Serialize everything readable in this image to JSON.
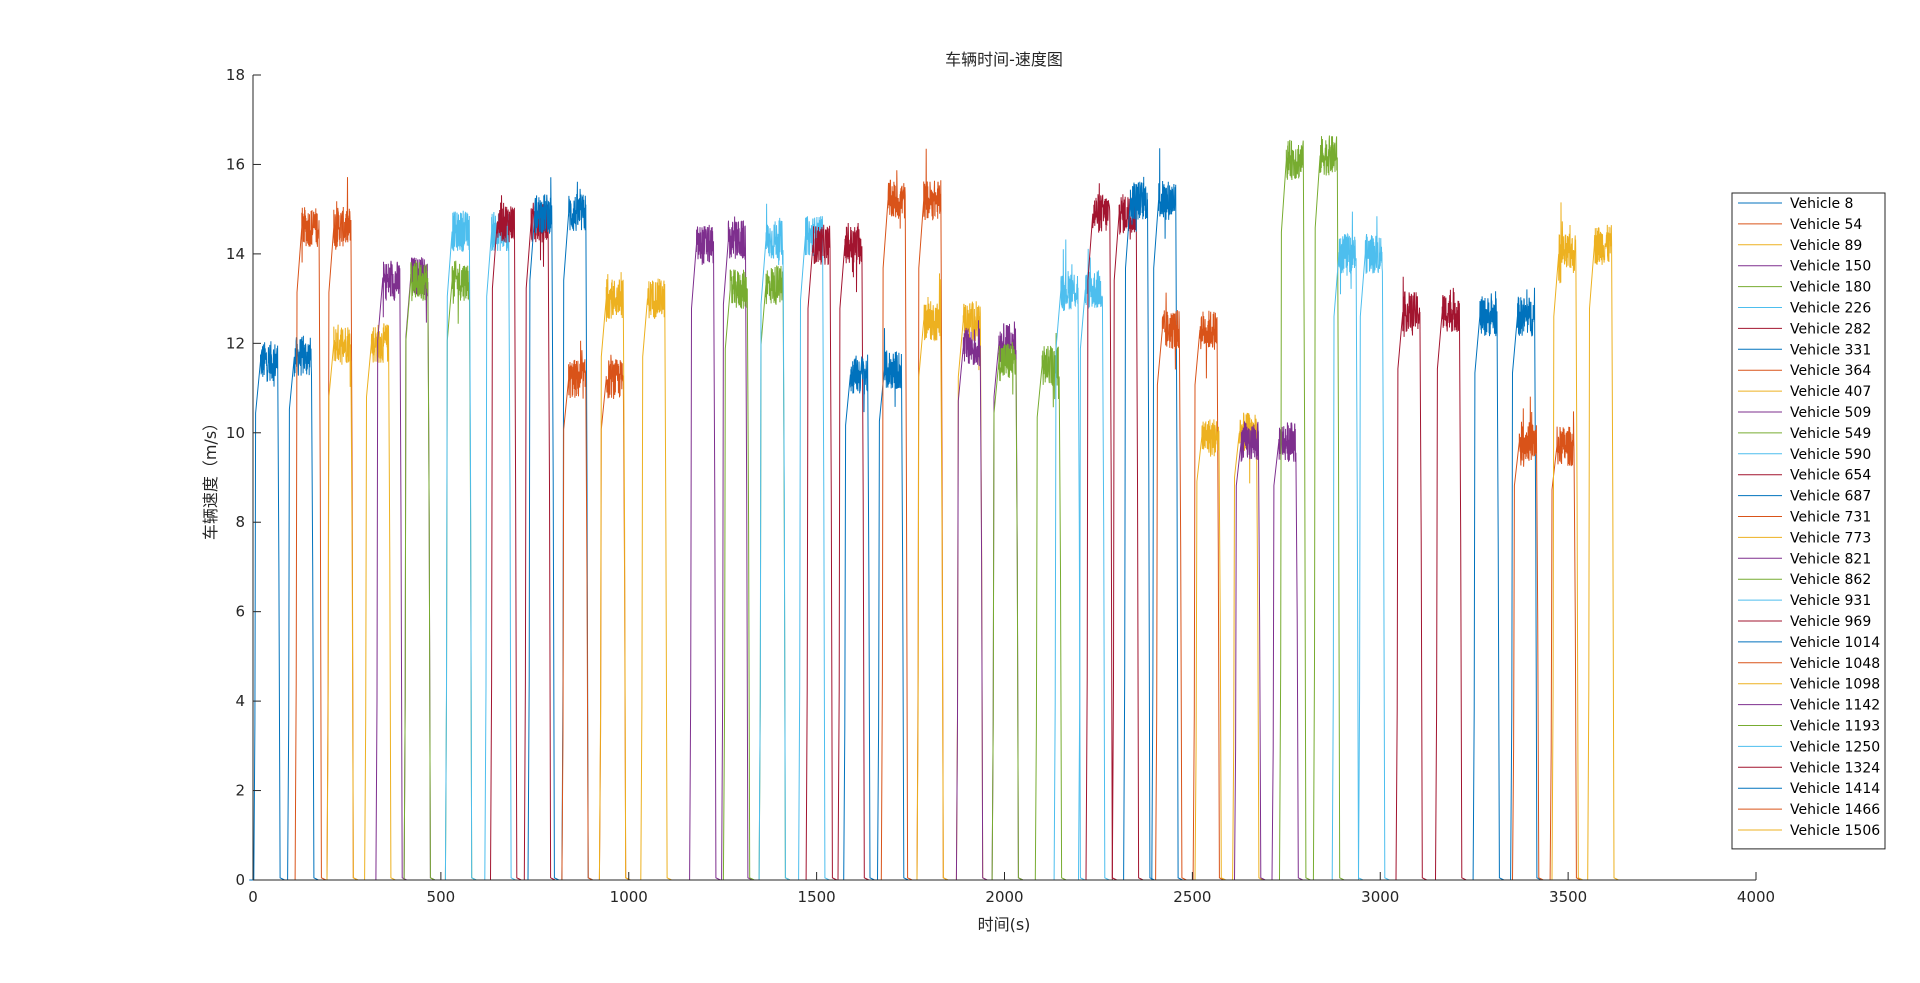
{
  "chart_data": {
    "type": "line",
    "title": "车辆时间-速度图",
    "xlabel": "时间(s)",
    "ylabel": "车辆速度（m/s）",
    "xlim": [
      0,
      4000
    ],
    "ylim": [
      0,
      18
    ],
    "xticks": [
      0,
      500,
      1000,
      1500,
      2000,
      2500,
      3000,
      3500,
      4000
    ],
    "yticks": [
      0,
      2,
      4,
      6,
      8,
      10,
      12,
      14,
      16,
      18
    ],
    "grid": false,
    "legend_position": "right",
    "colors": [
      "#0072BD",
      "#D95319",
      "#EDB120",
      "#7E2F8E",
      "#77AC30",
      "#4DBEEE",
      "#A2142F"
    ],
    "series": [
      {
        "name": "Vehicle 8",
        "segments": [
          {
            "start": 20,
            "end": 66,
            "speed": 11.6
          },
          {
            "start": 110,
            "end": 156,
            "speed": 11.7
          }
        ]
      },
      {
        "name": "Vehicle 54",
        "segments": [
          {
            "start": 130,
            "end": 176,
            "speed": 14.6
          },
          {
            "start": 215,
            "end": 261,
            "speed": 14.6
          }
        ]
      },
      {
        "name": "Vehicle 89",
        "segments": [
          {
            "start": 215,
            "end": 261,
            "speed": 12.0
          },
          {
            "start": 315,
            "end": 361,
            "speed": 12.0
          }
        ]
      },
      {
        "name": "Vehicle 150",
        "segments": [
          {
            "start": 345,
            "end": 391,
            "speed": 13.4
          },
          {
            "start": 420,
            "end": 466,
            "speed": 13.5
          }
        ]
      },
      {
        "name": "Vehicle 180",
        "segments": [
          {
            "start": 420,
            "end": 466,
            "speed": 13.4
          },
          {
            "start": 530,
            "end": 576,
            "speed": 13.4
          }
        ]
      },
      {
        "name": "Vehicle 226",
        "segments": [
          {
            "start": 530,
            "end": 576,
            "speed": 14.5
          },
          {
            "start": 635,
            "end": 681,
            "speed": 14.5
          }
        ]
      },
      {
        "name": "Vehicle 282",
        "segments": [
          {
            "start": 650,
            "end": 696,
            "speed": 14.7
          },
          {
            "start": 740,
            "end": 786,
            "speed": 14.7
          }
        ]
      },
      {
        "name": "Vehicle 331",
        "segments": [
          {
            "start": 750,
            "end": 796,
            "speed": 14.9
          },
          {
            "start": 840,
            "end": 886,
            "speed": 14.9
          }
        ]
      },
      {
        "name": "Vehicle 364",
        "segments": [
          {
            "start": 840,
            "end": 886,
            "speed": 11.2
          },
          {
            "start": 940,
            "end": 986,
            "speed": 11.2
          }
        ]
      },
      {
        "name": "Vehicle 407",
        "segments": [
          {
            "start": 940,
            "end": 986,
            "speed": 13.0
          },
          {
            "start": 1050,
            "end": 1096,
            "speed": 13.0
          }
        ]
      },
      {
        "name": "Vehicle 509",
        "segments": [
          {
            "start": 1180,
            "end": 1226,
            "speed": 14.2
          },
          {
            "start": 1265,
            "end": 1311,
            "speed": 14.3
          }
        ]
      },
      {
        "name": "Vehicle 549",
        "segments": [
          {
            "start": 1270,
            "end": 1316,
            "speed": 13.2
          },
          {
            "start": 1365,
            "end": 1411,
            "speed": 13.3
          }
        ]
      },
      {
        "name": "Vehicle 590",
        "segments": [
          {
            "start": 1365,
            "end": 1411,
            "speed": 14.3
          },
          {
            "start": 1470,
            "end": 1516,
            "speed": 14.4
          }
        ]
      },
      {
        "name": "Vehicle 654",
        "segments": [
          {
            "start": 1490,
            "end": 1536,
            "speed": 14.2
          },
          {
            "start": 1575,
            "end": 1621,
            "speed": 14.2
          }
        ]
      },
      {
        "name": "Vehicle 687",
        "segments": [
          {
            "start": 1590,
            "end": 1636,
            "speed": 11.3
          },
          {
            "start": 1680,
            "end": 1726,
            "speed": 11.4
          }
        ]
      },
      {
        "name": "Vehicle 731",
        "segments": [
          {
            "start": 1690,
            "end": 1736,
            "speed": 15.2
          },
          {
            "start": 1785,
            "end": 1831,
            "speed": 15.2
          }
        ]
      },
      {
        "name": "Vehicle 773",
        "segments": [
          {
            "start": 1785,
            "end": 1831,
            "speed": 12.5
          },
          {
            "start": 1890,
            "end": 1936,
            "speed": 12.5
          }
        ]
      },
      {
        "name": "Vehicle 821",
        "segments": [
          {
            "start": 1890,
            "end": 1936,
            "speed": 11.9
          },
          {
            "start": 1985,
            "end": 2031,
            "speed": 12.0
          }
        ]
      },
      {
        "name": "Vehicle 862",
        "segments": [
          {
            "start": 1985,
            "end": 2031,
            "speed": 11.6
          },
          {
            "start": 2100,
            "end": 2146,
            "speed": 11.5
          }
        ]
      },
      {
        "name": "Vehicle 931",
        "segments": [
          {
            "start": 2150,
            "end": 2196,
            "speed": 13.2
          },
          {
            "start": 2215,
            "end": 2261,
            "speed": 13.2
          }
        ]
      },
      {
        "name": "Vehicle 969",
        "segments": [
          {
            "start": 2235,
            "end": 2281,
            "speed": 14.9
          },
          {
            "start": 2305,
            "end": 2351,
            "speed": 14.9
          }
        ]
      },
      {
        "name": "Vehicle 1014",
        "segments": [
          {
            "start": 2335,
            "end": 2381,
            "speed": 15.2
          },
          {
            "start": 2410,
            "end": 2456,
            "speed": 15.2
          }
        ]
      },
      {
        "name": "Vehicle 1048",
        "segments": [
          {
            "start": 2420,
            "end": 2466,
            "speed": 12.3
          },
          {
            "start": 2520,
            "end": 2566,
            "speed": 12.3
          }
        ]
      },
      {
        "name": "Vehicle 1098",
        "segments": [
          {
            "start": 2525,
            "end": 2571,
            "speed": 9.9
          },
          {
            "start": 2625,
            "end": 2671,
            "speed": 10.0
          }
        ]
      },
      {
        "name": "Vehicle 1142",
        "segments": [
          {
            "start": 2630,
            "end": 2676,
            "speed": 9.8
          },
          {
            "start": 2730,
            "end": 2776,
            "speed": 9.8
          }
        ]
      },
      {
        "name": "Vehicle 1193",
        "segments": [
          {
            "start": 2750,
            "end": 2796,
            "speed": 16.1
          },
          {
            "start": 2840,
            "end": 2886,
            "speed": 16.2
          }
        ]
      },
      {
        "name": "Vehicle 1250",
        "segments": [
          {
            "start": 2890,
            "end": 2936,
            "speed": 14.0
          },
          {
            "start": 2960,
            "end": 3006,
            "speed": 14.0
          }
        ]
      },
      {
        "name": "Vehicle 1324",
        "segments": [
          {
            "start": 3060,
            "end": 3106,
            "speed": 12.7
          },
          {
            "start": 3165,
            "end": 3211,
            "speed": 12.7
          }
        ]
      },
      {
        "name": "Vehicle 1414",
        "segments": [
          {
            "start": 3265,
            "end": 3311,
            "speed": 12.6
          },
          {
            "start": 3365,
            "end": 3411,
            "speed": 12.6
          }
        ]
      },
      {
        "name": "Vehicle 1466",
        "segments": [
          {
            "start": 3370,
            "end": 3416,
            "speed": 9.8
          },
          {
            "start": 3470,
            "end": 3516,
            "speed": 9.7
          }
        ]
      },
      {
        "name": "Vehicle 1506",
        "segments": [
          {
            "start": 3475,
            "end": 3521,
            "speed": 14.0
          },
          {
            "start": 3570,
            "end": 3616,
            "speed": 14.2
          }
        ]
      }
    ]
  }
}
